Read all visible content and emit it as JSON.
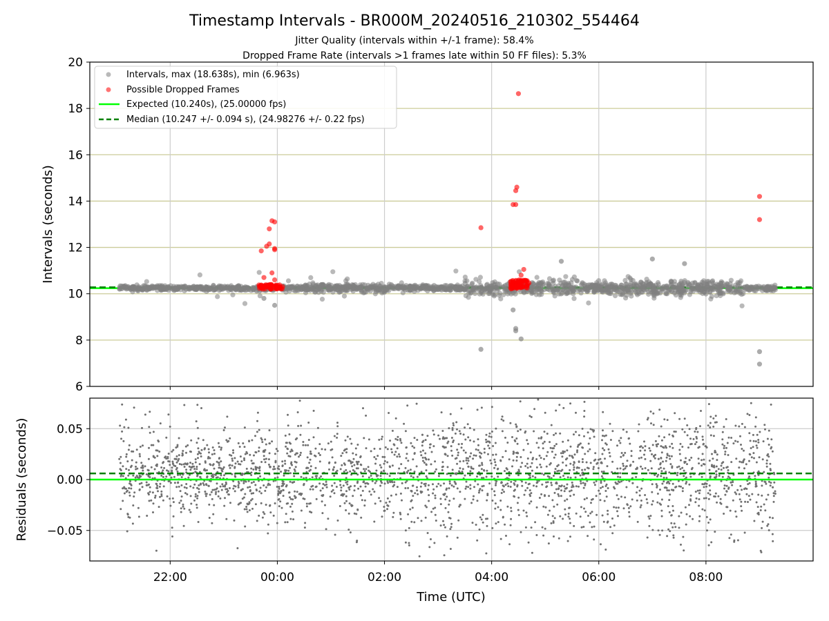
{
  "chart_data": [
    {
      "type": "scatter",
      "title": "Timestamp Intervals - BR000M_20240516_210302_554464",
      "subtitle_lines": [
        "Jitter Quality (intervals within +/-1 frame): 58.4%",
        "Dropped Frame Rate (intervals >1 frames late within 50 FF files): 5.3%"
      ],
      "xlabel": "",
      "ylabel": "Intervals (seconds)",
      "ylim": [
        6,
        20
      ],
      "yticks": [
        6,
        8,
        10,
        12,
        14,
        16,
        18,
        20
      ],
      "xlim_hours": [
        -3.5,
        10.0
      ],
      "xtick_hours": [
        -2,
        0,
        2,
        4,
        6,
        8
      ],
      "xtick_labels": [
        "22:00",
        "00:00",
        "02:00",
        "04:00",
        "06:00",
        "08:00"
      ],
      "grid": true,
      "horizontal_grid_color": "#cccc99",
      "vertical_grid_color": "#cccccc",
      "legend_position": "top-left",
      "series": [
        {
          "name": "Intervals, max (18.638s), min (6.963s)",
          "color": "#808080",
          "note_count_approx": 3000,
          "x_range_hours": [
            -2.95,
            9.3
          ],
          "typical_y": 10.247,
          "outliers": [
            {
              "x": 3.8,
              "y": 7.6
            },
            {
              "x": 4.45,
              "y": 8.4
            },
            {
              "x": 4.45,
              "y": 8.5
            },
            {
              "x": 4.55,
              "y": 8.05
            },
            {
              "x": 4.4,
              "y": 9.3
            },
            {
              "x": 9.0,
              "y": 7.5
            },
            {
              "x": 9.0,
              "y": 6.963
            },
            {
              "x": -0.05,
              "y": 9.5
            },
            {
              "x": -0.25,
              "y": 9.8
            },
            {
              "x": 7.0,
              "y": 11.5
            },
            {
              "x": 7.6,
              "y": 11.3
            },
            {
              "x": 5.3,
              "y": 11.4
            }
          ]
        },
        {
          "name": "Possible Dropped Frames",
          "color": "#ff0000",
          "points": [
            {
              "x": -0.3,
              "y": 11.85
            },
            {
              "x": -0.2,
              "y": 12.05
            },
            {
              "x": -0.15,
              "y": 12.8
            },
            {
              "x": -0.1,
              "y": 13.15
            },
            {
              "x": -0.05,
              "y": 13.1
            },
            {
              "x": -0.05,
              "y": 11.95
            },
            {
              "x": -0.05,
              "y": 11.9
            },
            {
              "x": -0.15,
              "y": 12.15
            },
            {
              "x": -0.25,
              "y": 10.7
            },
            {
              "x": -0.1,
              "y": 10.9
            },
            {
              "x": -0.05,
              "y": 10.6
            },
            {
              "x": 3.8,
              "y": 12.85
            },
            {
              "x": 4.4,
              "y": 13.85
            },
            {
              "x": 4.45,
              "y": 13.85
            },
            {
              "x": 4.45,
              "y": 14.45
            },
            {
              "x": 4.47,
              "y": 14.6
            },
            {
              "x": 4.5,
              "y": 18.638
            },
            {
              "x": 4.6,
              "y": 11.05
            },
            {
              "x": 4.55,
              "y": 10.8
            },
            {
              "x": 9.0,
              "y": 14.2
            },
            {
              "x": 9.0,
              "y": 13.2
            }
          ],
          "clusters": [
            {
              "x_range_hours": [
                -0.35,
                0.1
              ],
              "y_range": [
                10.2,
                10.4
              ],
              "count": 60
            },
            {
              "x_range_hours": [
                4.35,
                4.7
              ],
              "y_range": [
                10.2,
                10.6
              ],
              "count": 70
            }
          ]
        },
        {
          "name": "Expected (10.240s), (25.00000 fps)",
          "color": "#00ff00",
          "style": "solid",
          "y": 10.24
        },
        {
          "name": "Median (10.247 +/- 0.094 s), (24.98276 +/- 0.22 fps)",
          "color": "#008000",
          "style": "dashed",
          "y": 10.247
        }
      ]
    },
    {
      "type": "scatter",
      "xlabel": "Time (UTC)",
      "ylabel": "Residuals (seconds)",
      "ylim": [
        -0.08,
        0.08
      ],
      "yticks": [
        -0.05,
        0.0,
        0.05
      ],
      "ytick_labels": [
        "−0.05",
        "0.00",
        "0.05"
      ],
      "xlim_hours": [
        -3.5,
        10.0
      ],
      "xtick_hours": [
        -2,
        0,
        2,
        4,
        6,
        8
      ],
      "xtick_labels": [
        "22:00",
        "00:00",
        "02:00",
        "04:00",
        "06:00",
        "08:00"
      ],
      "grid": true,
      "grid_color": "#cccccc",
      "series": [
        {
          "name": "",
          "color": "#707070",
          "note_count_approx": 2600,
          "x_range_hours": [
            -2.95,
            9.3
          ],
          "center": 0.005,
          "spread": 0.03
        },
        {
          "name": "",
          "color": "#00ff00",
          "style": "solid",
          "y": 0.0
        },
        {
          "name": "",
          "color": "#008000",
          "style": "dashed",
          "y": 0.006
        }
      ]
    }
  ],
  "colors": {
    "intervals": "#808080",
    "dropped": "#ff0000",
    "expected": "#00ff00",
    "median": "#008000",
    "residual_dots": "#707070"
  }
}
